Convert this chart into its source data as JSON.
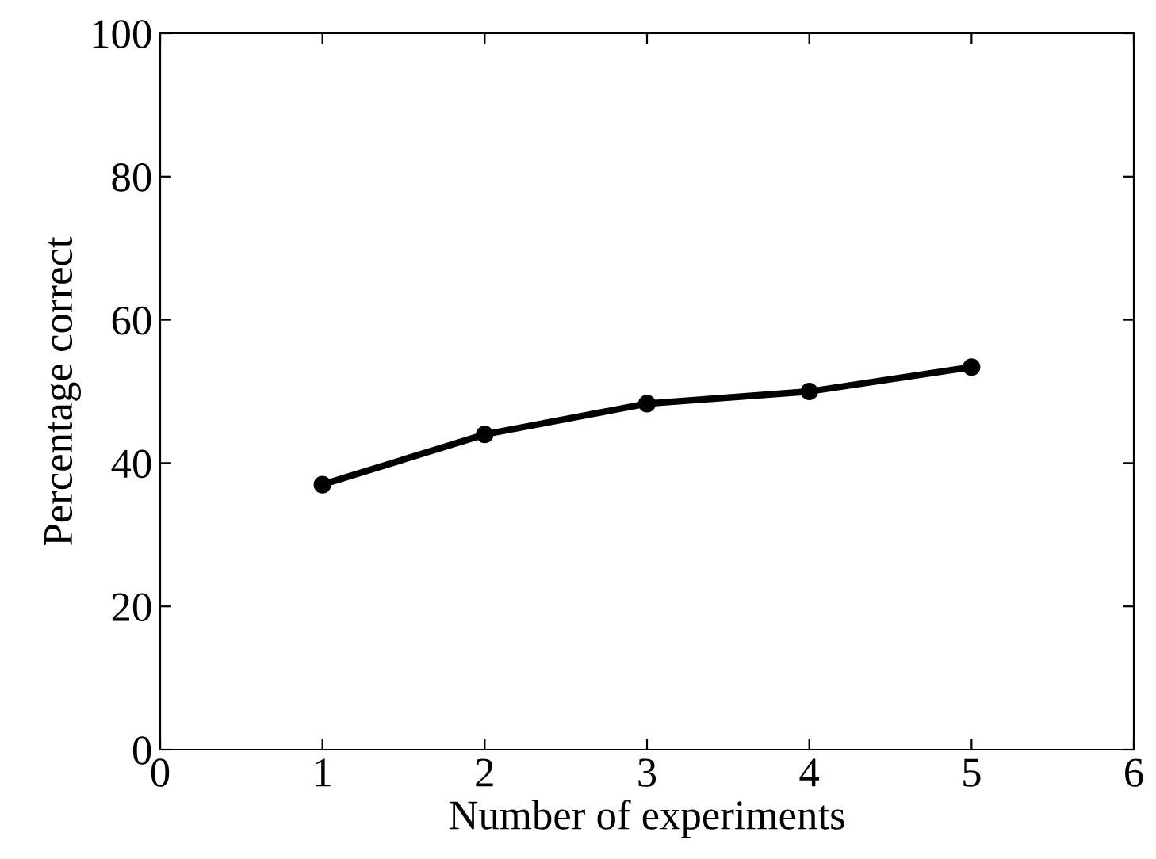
{
  "chart_data": {
    "type": "line",
    "xlabel": "Number of experiments",
    "ylabel": "Percentage correct",
    "x": [
      1,
      2,
      3,
      4,
      5
    ],
    "series": [
      {
        "color": "#000000",
        "values": [
          37,
          44,
          48.3,
          50,
          53.4
        ]
      }
    ],
    "xlim": [
      0,
      6
    ],
    "xticks": [
      0,
      1,
      2,
      3,
      4,
      5,
      6
    ],
    "ylim": [
      0,
      100
    ],
    "yticks": [
      0,
      20,
      40,
      60,
      80,
      100
    ],
    "marker": "circle",
    "line_style": "solid",
    "grid": false,
    "legend": false
  }
}
